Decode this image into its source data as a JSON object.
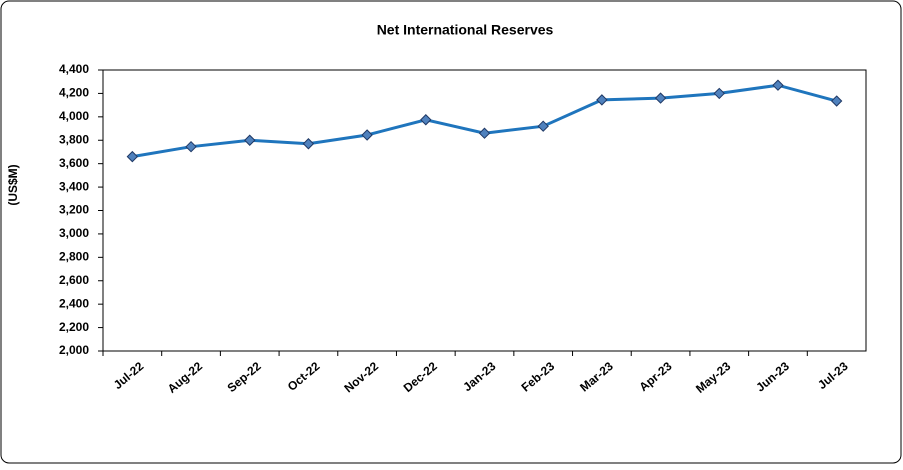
{
  "chart_data": {
    "type": "line",
    "title": "Net International Reserves",
    "y_label": "(US$M)",
    "categories": [
      "Jul-22",
      "Aug-22",
      "Sep-22",
      "Oct-22",
      "Nov-22",
      "Dec-22",
      "Jan-23",
      "Feb-23",
      "Mar-23",
      "Apr-23",
      "May-23",
      "Jun-23",
      "Jul-23"
    ],
    "series": [
      {
        "name": "Net International Reserves",
        "color": "#1f75bd",
        "marker_color": "#4f81bd",
        "values": [
          3660,
          3745,
          3800,
          3770,
          3845,
          3975,
          3860,
          3920,
          4145,
          4160,
          4200,
          4270,
          4135
        ]
      }
    ],
    "ylim": [
      2000,
      4400
    ],
    "yticks": [
      {
        "value": 2000,
        "label": "2,000"
      },
      {
        "value": 2200,
        "label": "2,200"
      },
      {
        "value": 2400,
        "label": "2,400"
      },
      {
        "value": 2600,
        "label": "2,600"
      },
      {
        "value": 2800,
        "label": "2,800"
      },
      {
        "value": 3000,
        "label": "3,000"
      },
      {
        "value": 3200,
        "label": "3,200"
      },
      {
        "value": 3400,
        "label": "3,400"
      },
      {
        "value": 3600,
        "label": "3,600"
      },
      {
        "value": 3800,
        "label": "3,800"
      },
      {
        "value": 4000,
        "label": "4,000"
      },
      {
        "value": 4200,
        "label": "4,200"
      },
      {
        "value": 4400,
        "label": "4,400"
      }
    ],
    "grid": false
  }
}
